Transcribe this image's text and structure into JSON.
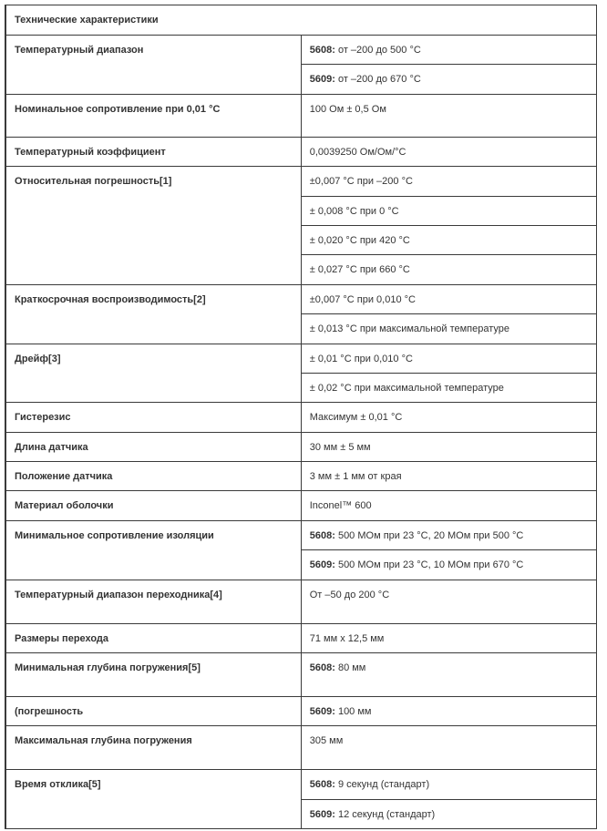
{
  "title": "Технические характеристики",
  "rows": [
    {
      "label": "Температурный диапазон",
      "values": [
        {
          "prefix": "5608:",
          "text": " от –200 до 500 °C"
        },
        {
          "prefix": "5609:",
          "text": " от –200 до 670 °C"
        }
      ]
    },
    {
      "label": "Номинальное сопротивление при 0,01 °C",
      "values": [
        {
          "text": "100 Ом ± 0,5 Ом"
        }
      ]
    },
    {
      "label": "Температурный коэффициент",
      "values": [
        {
          "text": "0,0039250 Ом/Ом/°C"
        }
      ]
    },
    {
      "label": "Относительная погрешность[1]",
      "values": [
        {
          "text": "±0,007 °C при –200 °C"
        },
        {
          "text": "± 0,008 °C при 0 °C"
        },
        {
          "text": "± 0,020 °C при 420 °C"
        },
        {
          "text": "± 0,027 °C при 660 °C"
        }
      ]
    },
    {
      "label": "Краткосрочная воспроизводимость[2]",
      "values": [
        {
          "text": "±0,007 °C при 0,010 °C"
        },
        {
          "text": "± 0,013 °C при максимальной температуре"
        }
      ]
    },
    {
      "label": "Дрейф[3]",
      "values": [
        {
          "text": "± 0,01 °C при 0,010 °C"
        },
        {
          "text": "± 0,02 °C при максимальной температуре"
        }
      ]
    },
    {
      "label": "Гистерезис",
      "values": [
        {
          "text": "Максимум ±  0,01 °C"
        }
      ]
    },
    {
      "label": "Длина датчика",
      "values": [
        {
          "text": "30 мм ± 5 мм"
        }
      ]
    },
    {
      "label": "Положение датчика",
      "values": [
        {
          "text": "3 мм ± 1 мм от края"
        }
      ]
    },
    {
      "label": "Материал оболочки",
      "values": [
        {
          "text": "Inconel™ 600"
        }
      ]
    },
    {
      "label": "Минимальное сопротивление изоляции",
      "values": [
        {
          "prefix": "5608:",
          "text": " 500 МОм при 23 °C, 20 МОм при 500 °C"
        },
        {
          "prefix": "5609:",
          "text": " 500 МОм при 23 °C, 10 МОм при 670 °C"
        }
      ]
    },
    {
      "label": "Температурный диапазон переходника[4]",
      "values": [
        {
          "text": "От –50 до 200 °C"
        }
      ]
    },
    {
      "label": "Размеры перехода",
      "values": [
        {
          "text": "71 мм x 12,5 мм"
        }
      ]
    },
    {
      "label": "Минимальная глубина погружения[5]",
      "values": [
        {
          "prefix": "5608:",
          "text": " 80 мм"
        }
      ]
    },
    {
      "label": "(погрешность",
      "values": [
        {
          "prefix": "5609:",
          "text": " 100 мм"
        }
      ]
    },
    {
      "label": "Максимальная глубина погружения",
      "values": [
        {
          "text": "305 мм"
        }
      ]
    },
    {
      "label": "Время отклика[5]",
      "values": [
        {
          "prefix": "5608:",
          "text": " 9 секунд (стандарт)"
        },
        {
          "prefix": "5609:",
          "text": " 12 секунд (стандарт)"
        }
      ]
    }
  ]
}
